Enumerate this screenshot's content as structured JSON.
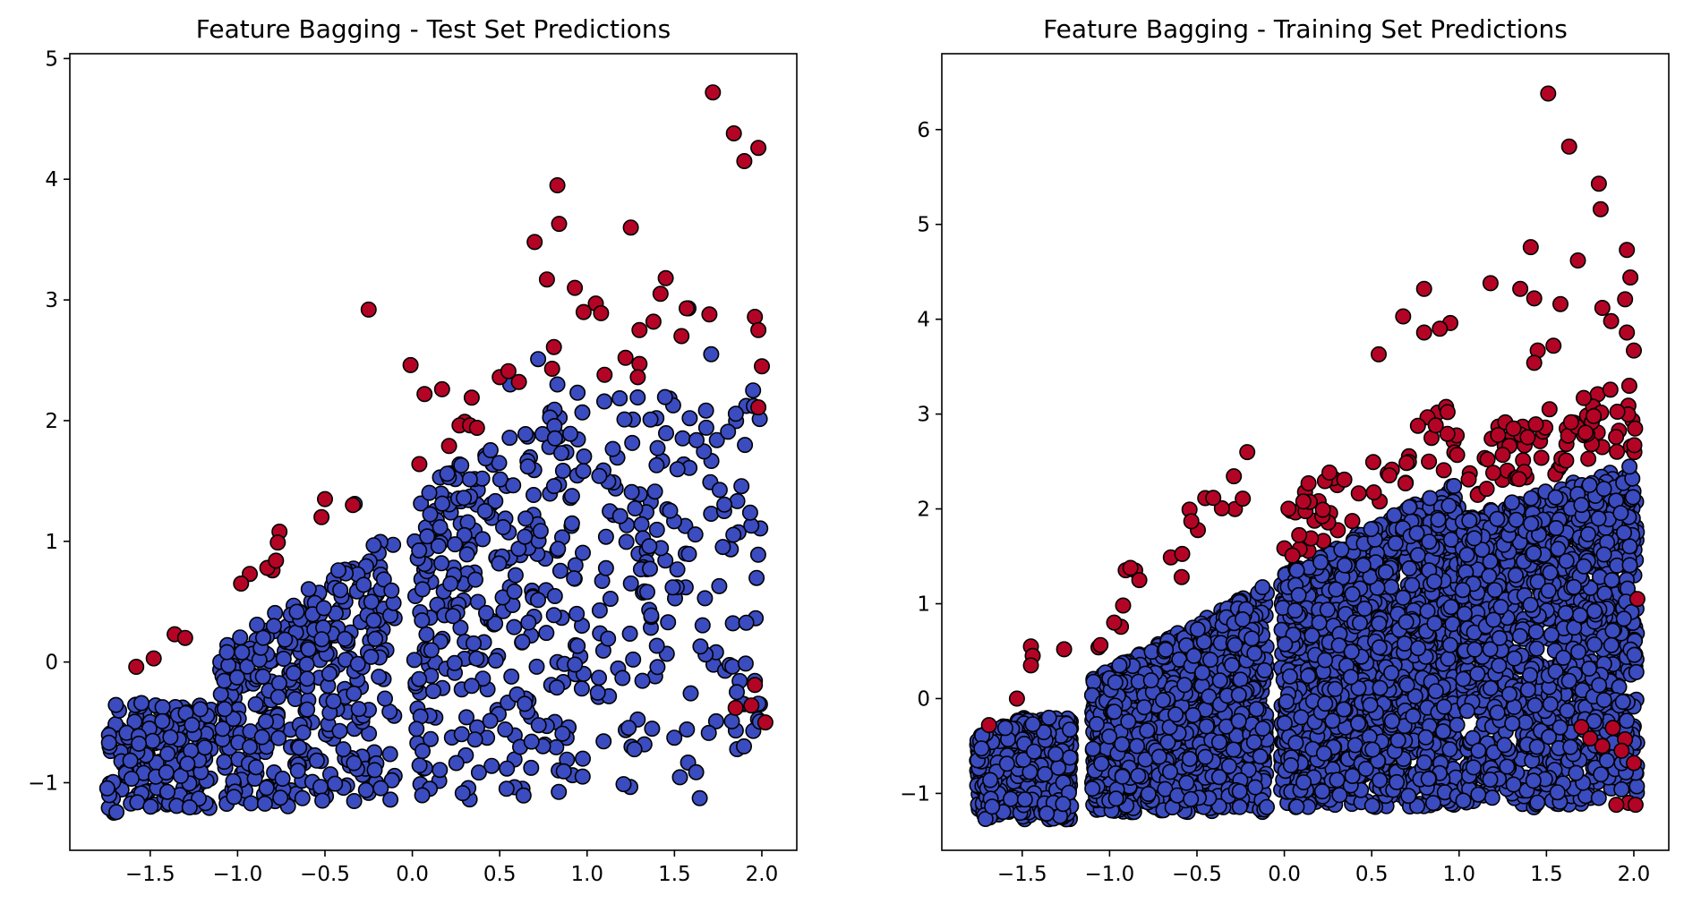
{
  "chart_data": [
    {
      "type": "scatter",
      "title": "Feature Bagging - Test Set Predictions",
      "xlabel": "",
      "ylabel": "",
      "xlim": [
        -1.96,
        2.2
      ],
      "ylim": [
        -1.56,
        5.04
      ],
      "xticks": [
        -1.5,
        -1.0,
        -0.5,
        0.0,
        0.5,
        1.0,
        1.5,
        2.0
      ],
      "yticks": [
        -1,
        0,
        1,
        2,
        3,
        4,
        5
      ],
      "xtick_labels": [
        "−1.5",
        "−1.0",
        "−0.5",
        "0.0",
        "0.5",
        "1.0",
        "1.5",
        "2.0"
      ],
      "ytick_labels": [
        "−1",
        "0",
        "1",
        "2",
        "3",
        "4",
        "5"
      ],
      "grid": false,
      "colors": {
        "inlier": "#3b4cc0",
        "outlier": "#b40426",
        "edge": "#000000"
      },
      "series": [
        {
          "role": "inlier",
          "clusters": [
            {
              "count": 200,
              "x": [
                -1.75,
                -1.15
              ],
              "y": [
                -1.25,
                -0.35
              ],
              "seed": 11
            },
            {
              "count": 360,
              "x": [
                -1.1,
                -0.1
              ],
              "y": [
                -1.2,
                1.1
              ],
              "upper_slope": [
                [
                  -1.1,
                  0.1
                ],
                [
                  -0.1,
                  1.1
                ]
              ],
              "seed": 23
            },
            {
              "count": 300,
              "x": [
                0.0,
                1.0
              ],
              "y": [
                -1.15,
                2.3
              ],
              "upper_slope": [
                [
                  0.0,
                  1.4
                ],
                [
                  1.0,
                  2.3
                ]
              ],
              "seed": 37
            },
            {
              "count": 170,
              "x": [
                1.05,
                2.0
              ],
              "y": [
                -1.15,
                2.2
              ],
              "seed": 41
            }
          ],
          "points": [
            [
              -1.55,
              -0.34
            ],
            [
              -0.33,
              1.31
            ],
            [
              0.2,
              1.56
            ],
            [
              0.72,
              2.51
            ],
            [
              1.58,
              2.93
            ],
            [
              1.71,
              2.55
            ],
            [
              1.95,
              2.25
            ],
            [
              0.83,
              2.3
            ],
            [
              0.56,
              2.3
            ]
          ]
        },
        {
          "role": "outlier",
          "points": [
            [
              1.72,
              4.72
            ],
            [
              1.84,
              4.38
            ],
            [
              1.98,
              4.26
            ],
            [
              1.9,
              4.15
            ],
            [
              0.83,
              3.95
            ],
            [
              0.84,
              3.63
            ],
            [
              1.25,
              3.6
            ],
            [
              0.7,
              3.48
            ],
            [
              0.77,
              3.17
            ],
            [
              0.93,
              3.1
            ],
            [
              1.45,
              3.18
            ],
            [
              1.42,
              3.05
            ],
            [
              1.05,
              2.97
            ],
            [
              1.08,
              2.89
            ],
            [
              1.57,
              2.93
            ],
            [
              1.7,
              2.88
            ],
            [
              1.96,
              2.86
            ],
            [
              1.98,
              2.75
            ],
            [
              1.3,
              2.75
            ],
            [
              1.38,
              2.82
            ],
            [
              1.54,
              2.7
            ],
            [
              0.98,
              2.9
            ],
            [
              -0.25,
              2.92
            ],
            [
              0.81,
              2.61
            ],
            [
              1.22,
              2.52
            ],
            [
              1.3,
              2.47
            ],
            [
              2.0,
              2.45
            ],
            [
              1.29,
              2.36
            ],
            [
              1.1,
              2.38
            ],
            [
              -0.01,
              2.46
            ],
            [
              0.5,
              2.36
            ],
            [
              0.55,
              2.41
            ],
            [
              0.8,
              2.43
            ],
            [
              0.17,
              2.26
            ],
            [
              0.07,
              2.22
            ],
            [
              0.61,
              2.32
            ],
            [
              0.34,
              2.19
            ],
            [
              1.98,
              2.11
            ],
            [
              0.3,
              1.99
            ],
            [
              0.27,
              1.96
            ],
            [
              0.33,
              1.96
            ],
            [
              0.37,
              1.94
            ],
            [
              0.21,
              1.79
            ],
            [
              0.04,
              1.64
            ],
            [
              -0.5,
              1.35
            ],
            [
              -0.52,
              1.2
            ],
            [
              -0.34,
              1.3
            ],
            [
              -0.76,
              1.08
            ],
            [
              -0.77,
              0.99
            ],
            [
              -0.93,
              0.73
            ],
            [
              -0.8,
              0.76
            ],
            [
              -0.83,
              0.78
            ],
            [
              -0.98,
              0.65
            ],
            [
              -0.78,
              0.84
            ],
            [
              -1.36,
              0.23
            ],
            [
              -1.3,
              0.2
            ],
            [
              -1.48,
              0.03
            ],
            [
              -1.58,
              -0.04
            ],
            [
              1.96,
              -0.19
            ],
            [
              1.94,
              -0.36
            ],
            [
              1.85,
              -0.38
            ],
            [
              2.02,
              -0.5
            ]
          ]
        }
      ]
    },
    {
      "type": "scatter",
      "title": "Feature Bagging - Training Set Predictions",
      "xlabel": "",
      "ylabel": "",
      "xlim": [
        -1.96,
        2.2
      ],
      "ylim": [
        -1.6,
        6.8
      ],
      "xticks": [
        -1.5,
        -1.0,
        -0.5,
        0.0,
        0.5,
        1.0,
        1.5,
        2.0
      ],
      "yticks": [
        -1,
        0,
        1,
        2,
        3,
        4,
        5,
        6
      ],
      "xtick_labels": [
        "−1.5",
        "−1.0",
        "−0.5",
        "0.0",
        "0.5",
        "1.0",
        "1.5",
        "2.0"
      ],
      "ytick_labels": [
        "−1",
        "0",
        "1",
        "2",
        "3",
        "4",
        "5",
        "6"
      ],
      "grid": false,
      "colors": {
        "inlier": "#3b4cc0",
        "outlier": "#b40426",
        "edge": "#000000"
      },
      "series": [
        {
          "role": "inlier",
          "clusters": [
            {
              "count": 750,
              "x": [
                -1.76,
                -1.22
              ],
              "y": [
                -1.28,
                -0.2
              ],
              "upper_slope": [
                [
                  -1.76,
                  -0.4
                ],
                [
                  -1.22,
                  0.0
                ]
              ],
              "seed": 5
            },
            {
              "count": 1700,
              "x": [
                -1.1,
                -0.1
              ],
              "y": [
                -1.2,
                1.2
              ],
              "upper_slope": [
                [
                  -1.1,
                  0.2
                ],
                [
                  -0.1,
                  1.2
                ]
              ],
              "seed": 7
            },
            {
              "count": 1500,
              "x": [
                -0.02,
                1.0
              ],
              "y": [
                -1.15,
                2.3
              ],
              "upper_slope": [
                [
                  -0.02,
                  1.3
                ],
                [
                  1.0,
                  2.3
                ]
              ],
              "seed": 13
            },
            {
              "count": 1400,
              "x": [
                1.02,
                2.02
              ],
              "y": [
                -1.15,
                2.5
              ],
              "upper_slope": [
                [
                  1.02,
                  1.9
                ],
                [
                  2.02,
                  2.5
                ]
              ],
              "seed": 17
            }
          ],
          "points": []
        },
        {
          "role": "outlier",
          "clusters": [
            {
              "count": 22,
              "x": [
                -1.1,
                -0.15
              ],
              "y": [
                0.3,
                2.0
              ],
              "band": [
                [
                  -1.1,
                  0.3
                ],
                [
                  -0.15,
                  2.0
                ]
              ],
              "seed": 61
            },
            {
              "count": 55,
              "x": [
                0.0,
                1.0
              ],
              "y": [
                1.5,
                3.4
              ],
              "band": [
                [
                  0.0,
                  1.4
                ],
                [
                  1.0,
                  2.5
                ]
              ],
              "seed": 67
            },
            {
              "count": 75,
              "x": [
                1.05,
                2.02
              ],
              "y": [
                2.0,
                3.8
              ],
              "band": [
                [
                  1.05,
                  2.1
                ],
                [
                  2.02,
                  2.6
                ]
              ],
              "seed": 71
            }
          ],
          "points": [
            [
              1.51,
              6.38
            ],
            [
              1.63,
              5.82
            ],
            [
              1.8,
              5.43
            ],
            [
              1.81,
              5.16
            ],
            [
              1.96,
              4.73
            ],
            [
              1.98,
              4.44
            ],
            [
              1.41,
              4.76
            ],
            [
              1.68,
              4.62
            ],
            [
              1.18,
              4.38
            ],
            [
              0.8,
              4.32
            ],
            [
              1.35,
              4.32
            ],
            [
              1.43,
              4.22
            ],
            [
              1.58,
              4.16
            ],
            [
              1.82,
              4.12
            ],
            [
              1.95,
              4.21
            ],
            [
              0.68,
              4.03
            ],
            [
              1.87,
              3.98
            ],
            [
              0.95,
              3.96
            ],
            [
              0.89,
              3.9
            ],
            [
              0.8,
              3.86
            ],
            [
              1.96,
              3.86
            ],
            [
              1.54,
              3.72
            ],
            [
              1.45,
              3.67
            ],
            [
              2.0,
              3.67
            ],
            [
              0.54,
              3.63
            ],
            [
              1.43,
              3.54
            ],
            [
              -1.45,
              0.55
            ],
            [
              -1.44,
              0.45
            ],
            [
              -1.45,
              0.35
            ],
            [
              -1.26,
              0.52
            ],
            [
              -1.53,
              0.0
            ],
            [
              -1.69,
              -0.28
            ],
            [
              1.7,
              -0.3
            ],
            [
              1.95,
              -0.43
            ],
            [
              2.0,
              -0.68
            ],
            [
              1.97,
              -1.1
            ],
            [
              1.9,
              -1.12
            ],
            [
              2.01,
              -1.12
            ],
            [
              1.93,
              -0.55
            ],
            [
              1.82,
              -0.5
            ],
            [
              1.75,
              -0.42
            ],
            [
              1.88,
              -0.31
            ],
            [
              2.02,
              1.05
            ]
          ]
        }
      ]
    }
  ]
}
